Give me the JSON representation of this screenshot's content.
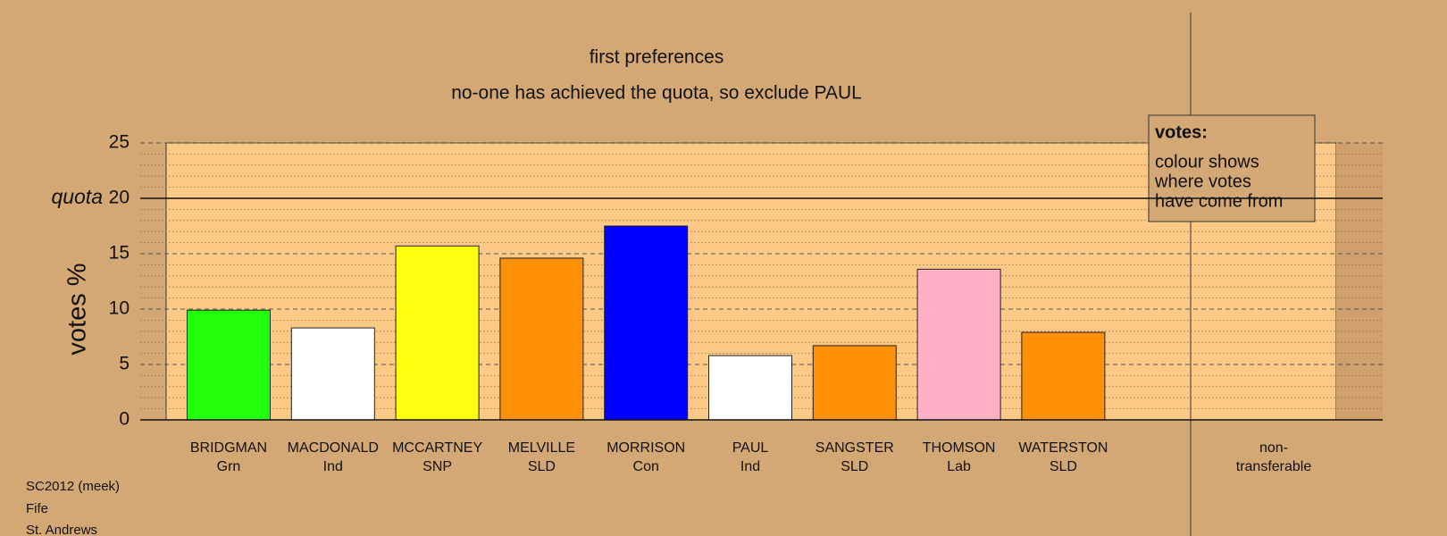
{
  "chart_data": {
    "type": "bar",
    "title": "first preferences",
    "subtitle": "no-one has achieved the quota, so exclude PAUL",
    "ylabel": "votes %",
    "categories": [
      "BRIDGMAN",
      "MACDONALD",
      "MCCARTNEY",
      "MELVILLE",
      "MORRISON",
      "PAUL",
      "SANGSTER",
      "THOMSON",
      "WATERSTON"
    ],
    "parties": [
      "Grn",
      "Ind",
      "SNP",
      "SLD",
      "Con",
      "Ind",
      "SLD",
      "Lab",
      "SLD"
    ],
    "values": [
      9.9,
      8.3,
      15.7,
      14.6,
      17.5,
      5.8,
      6.7,
      13.6,
      7.9
    ],
    "colors": [
      "#22ff0a",
      "#ffffff",
      "#ffff11",
      "#ff9108",
      "#0000ff",
      "#ffffff",
      "#ff9108",
      "#ffb0c4",
      "#ff9108"
    ],
    "extra_category": [
      "non-",
      "transferable"
    ],
    "ylim": [
      0,
      25
    ],
    "yticks": [
      0,
      5,
      10,
      15,
      20,
      25
    ],
    "minor_yticks": [
      1,
      2,
      3,
      4,
      6,
      7,
      8,
      9,
      11,
      12,
      13,
      14,
      16,
      17,
      18,
      19,
      21,
      22,
      23,
      24
    ],
    "grid": true,
    "quota": {
      "label": "quota",
      "value": 20
    },
    "legend": {
      "title": "votes:",
      "lines": [
        "colour shows",
        "where votes",
        "have come from"
      ]
    },
    "footer": [
      "SC2012 (meek)",
      "Fife",
      "St. Andrews"
    ]
  }
}
